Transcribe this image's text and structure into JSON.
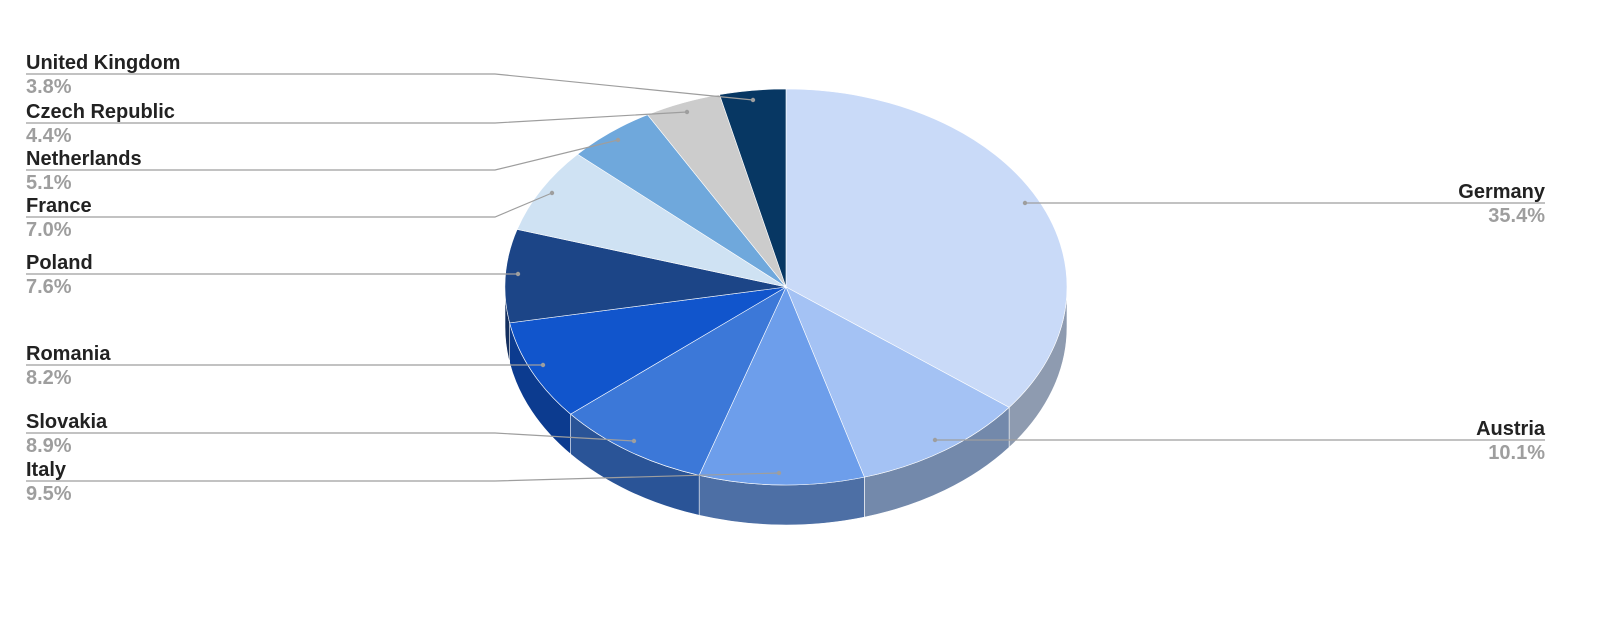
{
  "chart_data": {
    "type": "pie",
    "style": "3d",
    "legend": "none",
    "slices": [
      {
        "label": "Germany",
        "value": 35.4,
        "display": "35.4%",
        "color": "#c9daf8",
        "side_color": "#8e9bb0"
      },
      {
        "label": "Austria",
        "value": 10.1,
        "display": "10.1%",
        "color": "#a4c2f4",
        "side_color": "#7389ab"
      },
      {
        "label": "Italy",
        "value": 9.5,
        "display": "9.5%",
        "color": "#6d9eeb",
        "side_color": "#4d6fa5"
      },
      {
        "label": "Slovakia",
        "value": 8.9,
        "display": "8.9%",
        "color": "#3c78d8",
        "side_color": "#2a5497"
      },
      {
        "label": "Romania",
        "value": 8.2,
        "display": "8.2%",
        "color": "#1155cc",
        "side_color": "#0c3b8f"
      },
      {
        "label": "Poland",
        "value": 7.6,
        "display": "7.6%",
        "color": "#1c4587",
        "side_color": "#142f5e"
      },
      {
        "label": "France",
        "value": 7.0,
        "display": "7.0%",
        "color": "#cfe2f3",
        "side_color": "#919ea9"
      },
      {
        "label": "Netherlands",
        "value": 5.1,
        "display": "5.1%",
        "color": "#6fa8dc",
        "side_color": "#4e769a"
      },
      {
        "label": "Czech Republic",
        "value": 4.4,
        "display": "4.4%",
        "color": "#cccccc",
        "side_color": "#8f8f8f"
      },
      {
        "label": "United Kingdom",
        "value": 3.8,
        "display": "3.8%",
        "color": "#073763",
        "side_color": "#052745"
      }
    ]
  }
}
